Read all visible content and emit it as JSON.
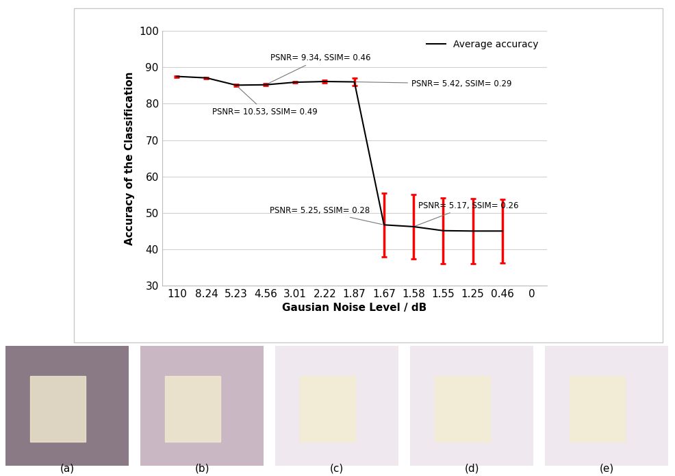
{
  "chart_data": {
    "type": "line",
    "xlabel": "Gausian Noise Level / dB",
    "ylabel": "Accuracy of the Classification",
    "categories": [
      "110",
      "8.24",
      "5.23",
      "4.56",
      "3.01",
      "2.22",
      "1.87",
      "1.67",
      "1.58",
      "1.55",
      "1.25",
      "0.46",
      "0"
    ],
    "series": [
      {
        "name": "Average accuracy",
        "color": "#000000",
        "values": [
          87.5,
          87.1,
          85.1,
          85.2,
          85.9,
          86.1,
          86.0,
          46.7,
          46.2,
          45.1,
          45.0,
          45.0,
          null
        ],
        "errors": [
          0.2,
          0.2,
          0.3,
          0.3,
          0.2,
          0.4,
          1.0,
          8.7,
          8.8,
          9.0,
          9.0,
          8.7,
          null
        ]
      }
    ],
    "ylim": [
      30,
      100
    ],
    "yticks": [
      30,
      40,
      50,
      60,
      70,
      80,
      90,
      100
    ],
    "grid": true,
    "legend": "upper right",
    "annotations": [
      {
        "text": "PSNR= 9.34, SSIM= 0.46",
        "category": 3
      },
      {
        "text": "PSNR= 10.53, SSIM= 0.49",
        "category": 2
      },
      {
        "text": "PSNR= 5.42, SSIM= 0.29",
        "category": 6
      },
      {
        "text": "PSNR= 5.25, SSIM= 0.28",
        "category": 7
      },
      {
        "text": "PSNR= 5.17, SSIM= 0.26",
        "category": 8
      }
    ]
  },
  "image_panels": {
    "labels": [
      "(a)",
      "(b)",
      "(c)",
      "(d)",
      "(e)"
    ]
  }
}
